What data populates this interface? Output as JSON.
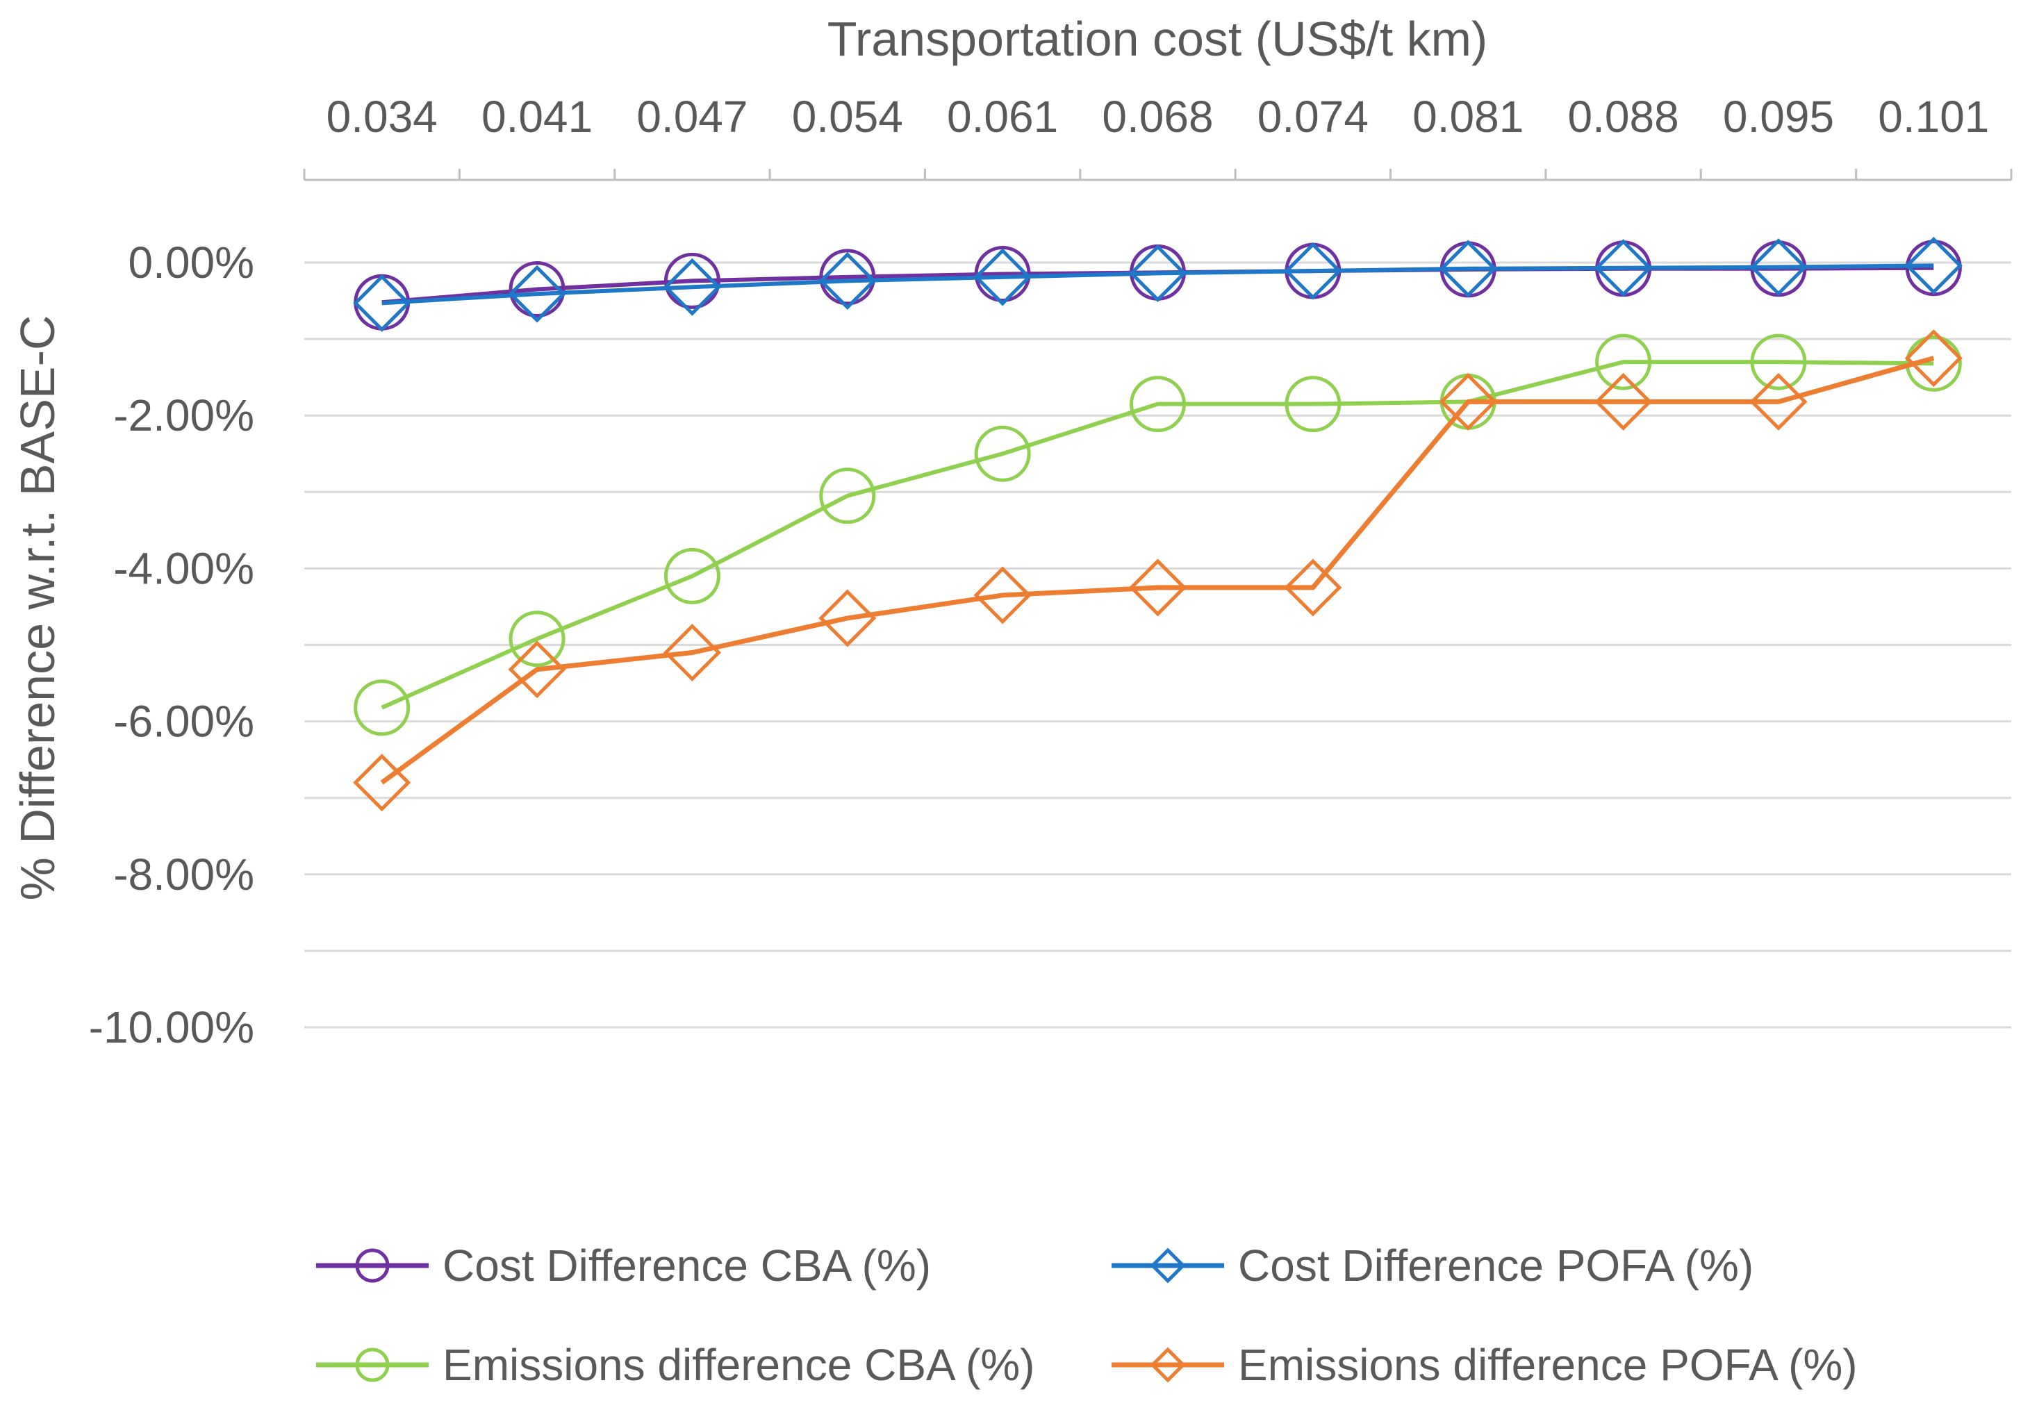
{
  "chart_data": {
    "type": "line",
    "title": "",
    "xlabel": "Transportation cost (US$/t  km)",
    "ylabel": "% Difference  w.r.t. BASE-C",
    "x_axis_position": "top",
    "categories": [
      "0.034",
      "0.041",
      "0.047",
      "0.054",
      "0.061",
      "0.068",
      "0.074",
      "0.081",
      "0.088",
      "0.095",
      "0.101"
    ],
    "ylim": [
      -10,
      0
    ],
    "ytick_values": [
      0,
      -2,
      -4,
      -6,
      -8,
      -10
    ],
    "ytick_labels": [
      "0.00%",
      "-2.00%",
      "-4.00%",
      "-6.00%",
      "-8.00%",
      "-10.00%"
    ],
    "grid": true,
    "legend_position": "bottom",
    "series": [
      {
        "name": "Cost Difference CBA (%)",
        "marker": "circle",
        "color": "#7030A0",
        "values": [
          -0.52,
          -0.35,
          -0.24,
          -0.19,
          -0.15,
          -0.13,
          -0.11,
          -0.09,
          -0.08,
          -0.08,
          -0.07
        ]
      },
      {
        "name": "Cost Difference POFA (%)",
        "marker": "diamond",
        "color": "#1F77C8",
        "values": [
          -0.53,
          -0.41,
          -0.32,
          -0.24,
          -0.19,
          -0.14,
          -0.11,
          -0.08,
          -0.07,
          -0.06,
          -0.04
        ]
      },
      {
        "name": "Emissions difference CBA (%)",
        "marker": "circle",
        "color": "#8FD14F",
        "values": [
          -5.82,
          -4.92,
          -4.1,
          -3.05,
          -2.5,
          -1.85,
          -1.85,
          -1.82,
          -1.3,
          -1.3,
          -1.32
        ]
      },
      {
        "name": "Emissions difference POFA  (%)",
        "marker": "diamond",
        "color": "#ED7D31",
        "values": [
          -6.8,
          -5.32,
          -5.1,
          -4.65,
          -4.35,
          -4.25,
          -4.25,
          -1.82,
          -1.82,
          -1.82,
          -1.25
        ]
      }
    ]
  }
}
